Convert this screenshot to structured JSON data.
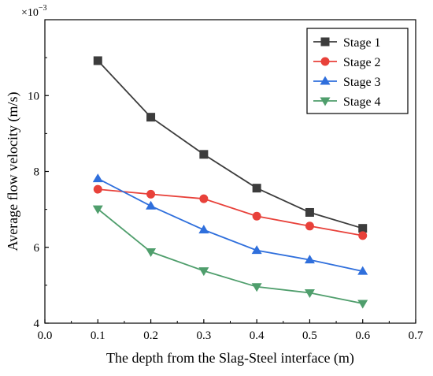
{
  "chart_data": {
    "type": "line",
    "title": "",
    "xlabel": "The depth from the Slag-Steel interface (m)",
    "ylabel": "Average flow velocity (m/s)",
    "y_multiplier_label": "×10",
    "y_multiplier_exponent": "−3",
    "xlim": [
      0.0,
      0.7
    ],
    "ylim": [
      4,
      12
    ],
    "x_ticks": [
      "0.0",
      "0.1",
      "0.2",
      "0.3",
      "0.4",
      "0.5",
      "0.6",
      "0.7"
    ],
    "y_ticks": [
      "4",
      "6",
      "8",
      "10"
    ],
    "x": [
      0.1,
      0.2,
      0.3,
      0.4,
      0.5,
      0.6
    ],
    "grid": false,
    "legend_position": "top-right",
    "series": [
      {
        "name": "Stage 1",
        "color": "#3c3c3c",
        "marker": "square",
        "values": [
          10.92,
          9.43,
          8.45,
          7.56,
          6.92,
          6.5
        ]
      },
      {
        "name": "Stage 2",
        "color": "#e8413a",
        "marker": "circle",
        "values": [
          7.53,
          7.4,
          7.28,
          6.82,
          6.56,
          6.31
        ]
      },
      {
        "name": "Stage 3",
        "color": "#2f6fdc",
        "marker": "triangle-up",
        "values": [
          7.81,
          7.09,
          6.46,
          5.92,
          5.67,
          5.37
        ]
      },
      {
        "name": "Stage 4",
        "color": "#4f9e6c",
        "marker": "triangle-down",
        "values": [
          7.01,
          5.88,
          5.38,
          4.96,
          4.8,
          4.52
        ]
      }
    ]
  }
}
